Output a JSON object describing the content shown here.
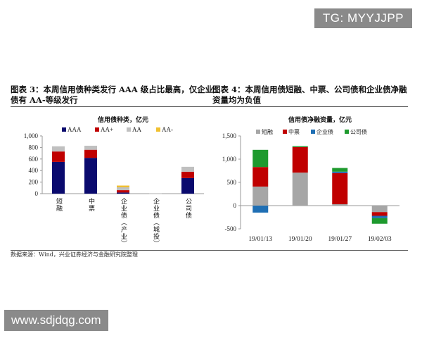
{
  "watermarks": {
    "top": "TG: MYYJJPP",
    "bottom": "www.sdjdqg.com"
  },
  "source": "数据来源：Wind，兴业证券经济与金融研究院整理",
  "chart_data": [
    {
      "type": "bar",
      "stacked": true,
      "title": "图表 3：本周信用债种类发行 AAA 级占比最高，仅企业债有 AA-等级发行",
      "subtitle": "信用债种类，亿元",
      "categories": [
        "短融",
        "中票",
        "企业债（产业）",
        "企业债（城投）",
        "公司债"
      ],
      "series": [
        {
          "name": "AAA",
          "color": "#0a0a6e",
          "values": [
            550,
            620,
            20,
            0,
            270
          ]
        },
        {
          "name": "AA+",
          "color": "#c00000",
          "values": [
            180,
            140,
            40,
            0,
            110
          ]
        },
        {
          "name": "AA",
          "color": "#c0c0c0",
          "values": [
            90,
            70,
            50,
            8,
            85
          ]
        },
        {
          "name": "AA-",
          "color": "#f0c030",
          "values": [
            0,
            0,
            30,
            0,
            0
          ]
        }
      ],
      "ylim": [
        0,
        1000
      ],
      "yticks": [
        "0",
        "200",
        "400",
        "600",
        "800",
        "1,000"
      ],
      "ytick_values": [
        0,
        200,
        400,
        600,
        800,
        1000
      ],
      "legend": "top",
      "grid": false
    },
    {
      "type": "bar",
      "stacked": true,
      "title": "图表 4：本周信用债短融、中票、公司债和企业债净融资量均为负值",
      "subtitle": "信用债净融资量，亿元",
      "categories": [
        "19/01/13",
        "19/01/20",
        "19/01/27",
        "19/02/03"
      ],
      "series": [
        {
          "name": "短融",
          "color": "#a6a6a6",
          "values": [
            410,
            710,
            30,
            -140
          ]
        },
        {
          "name": "中票",
          "color": "#c00000",
          "values": [
            420,
            550,
            670,
            -80
          ]
        },
        {
          "name": "企业债",
          "color": "#1f6fb4",
          "values": [
            -150,
            0,
            30,
            -50
          ]
        },
        {
          "name": "公司债",
          "color": "#1e9a2e",
          "values": [
            370,
            20,
            80,
            -120
          ]
        }
      ],
      "ylim": [
        -500,
        1500
      ],
      "yticks": [
        "-500",
        "0",
        "500",
        "1,000",
        "1,500"
      ],
      "ytick_values": [
        -500,
        0,
        500,
        1000,
        1500
      ],
      "legend": "top",
      "grid": false
    }
  ]
}
